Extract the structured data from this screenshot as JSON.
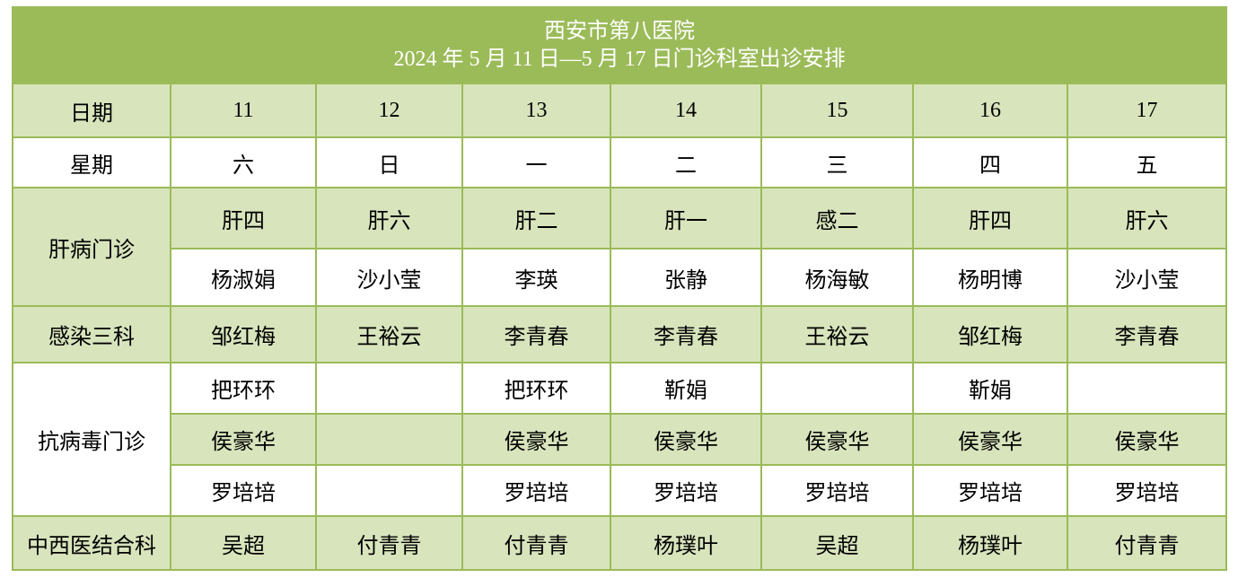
{
  "title": {
    "hospital": "西安市第八医院",
    "subtitle": "2024 年 5 月 11 日—5 月 17 日门诊科室出诊安排"
  },
  "header": {
    "date_label": "日期",
    "dates": [
      "11",
      "12",
      "13",
      "14",
      "15",
      "16",
      "17"
    ],
    "weekday_label": "星期",
    "weekdays": [
      "六",
      "日",
      "一",
      "二",
      "三",
      "四",
      "五"
    ]
  },
  "departments": {
    "liver": {
      "label": "肝病门诊",
      "rooms": [
        "肝四",
        "肝六",
        "肝二",
        "肝一",
        "感二",
        "肝四",
        "肝六"
      ],
      "doctors": [
        "杨淑娟",
        "沙小莹",
        "李瑛",
        "张静",
        "杨海敏",
        "杨明博",
        "沙小莹"
      ]
    },
    "infection3": {
      "label": "感染三科",
      "doctors": [
        "邹红梅",
        "王裕云",
        "李青春",
        "李青春",
        "王裕云",
        "邹红梅",
        "李青春"
      ]
    },
    "antiviral": {
      "label": "抗病毒门诊",
      "row1": [
        "把环环",
        "",
        "把环环",
        "靳娟",
        "",
        "靳娟",
        ""
      ],
      "row2": [
        "侯豪华",
        "",
        "侯豪华",
        "侯豪华",
        "侯豪华",
        "侯豪华",
        "侯豪华"
      ],
      "row3": [
        "罗培培",
        "",
        "罗培培",
        "罗培培",
        "罗培培",
        "罗培培",
        "罗培培"
      ]
    },
    "integrated": {
      "label": "中西医结合科",
      "doctors": [
        "吴超",
        "付青青",
        "付青青",
        "杨璞叶",
        "吴超",
        "杨璞叶",
        "付青青"
      ]
    }
  },
  "colors": {
    "header_green": "#9bbb59",
    "light_green": "#d8e4bc",
    "border": "#9bbb59"
  }
}
